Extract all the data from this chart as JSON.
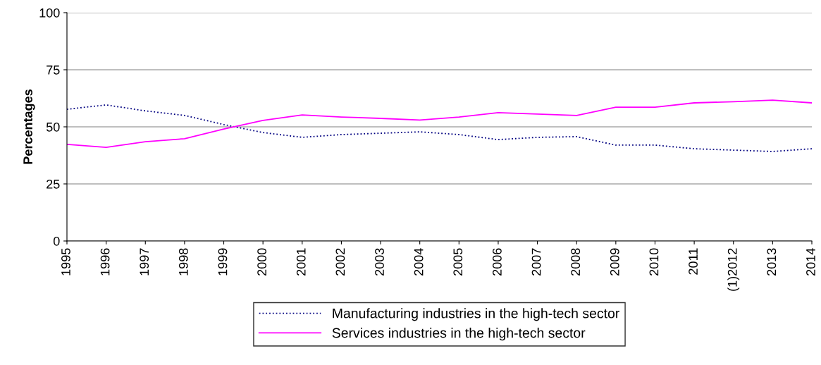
{
  "chart_data": {
    "type": "line",
    "ylabel": "Percentages",
    "categories": [
      "1995",
      "1996",
      "1997",
      "1998",
      "1999",
      "2000",
      "2001",
      "2002",
      "2003",
      "2004",
      "2005",
      "2006",
      "2007",
      "2008",
      "2009",
      "2010",
      "2011",
      "(1)2012",
      "2013",
      "2014"
    ],
    "series": [
      {
        "name": "Manufacturing industries in the high-tech sector",
        "color": "#000080",
        "line_style": "dotted",
        "values": [
          57.7,
          59.6,
          57,
          55,
          51,
          47.5,
          45.4,
          46.6,
          47.2,
          47.8,
          46.6,
          44.4,
          45.4,
          45.7,
          42,
          42,
          40.4,
          39.8,
          39.2,
          40.4
        ]
      },
      {
        "name": "Services industries in the high-tech sector",
        "color": "#ff00ff",
        "line_style": "solid",
        "values": [
          42.3,
          41,
          43.5,
          44.8,
          49,
          52.8,
          55.2,
          54.3,
          53.7,
          53,
          54.3,
          56.2,
          55.6,
          55,
          58.6,
          58.6,
          60.5,
          61,
          61.7,
          60.5
        ]
      }
    ],
    "ylim": [
      0,
      100
    ],
    "yticks": [
      0,
      25,
      50,
      75,
      100
    ],
    "grid": "y",
    "legend": "bottom",
    "marker": "none"
  }
}
